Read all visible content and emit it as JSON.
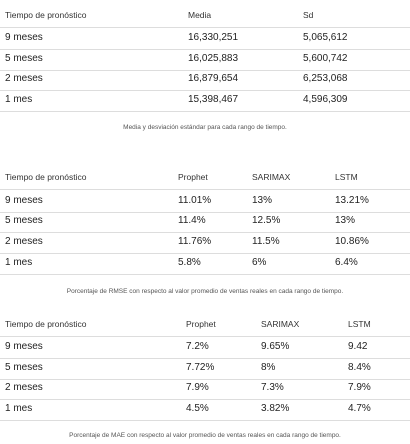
{
  "table1": {
    "headers": [
      "Tiempo de pronóstico",
      "Media",
      "Sd"
    ],
    "rows": [
      [
        "9 meses",
        "16,330,251",
        "5,065,612"
      ],
      [
        "5 meses",
        "16,025,883",
        "5,600,742"
      ],
      [
        "2 meses",
        "16,879,654",
        "6,253,068"
      ],
      [
        "1 mes",
        "15,398,467",
        "4,596,309"
      ]
    ],
    "caption": "Media y desviación estándar para cada rango de tiempo."
  },
  "table2": {
    "headers": [
      "Tiempo de pronóstico",
      "Prophet",
      "SARIMAX",
      "LSTM"
    ],
    "rows": [
      [
        "9 meses",
        "11.01%",
        "13%",
        "13.21%"
      ],
      [
        "5 meses",
        "11.4%",
        "12.5%",
        "13%"
      ],
      [
        "2 meses",
        "11.76%",
        "11.5%",
        "10.86%"
      ],
      [
        "1 mes",
        "5.8%",
        "6%",
        "6.4%"
      ]
    ],
    "caption": "Porcentaje de RMSE con respecto al valor promedio de ventas reales en cada rango de tiempo."
  },
  "table3": {
    "headers": [
      "Tiempo de pronóstico",
      "Prophet",
      "SARIMAX",
      "LSTM"
    ],
    "rows": [
      [
        "9 meses",
        "7.2%",
        "9.65%",
        "9.42"
      ],
      [
        "5 meses",
        "7.72%",
        "8%",
        "8.4%"
      ],
      [
        "2 meses",
        "7.9%",
        "7.3%",
        "7.9%"
      ],
      [
        "1 mes",
        "4.5%",
        "3.82%",
        "4.7%"
      ]
    ],
    "caption": "Porcentaje de MAE con respecto al valor promedio de ventas reales en cada rango de tiempo."
  }
}
